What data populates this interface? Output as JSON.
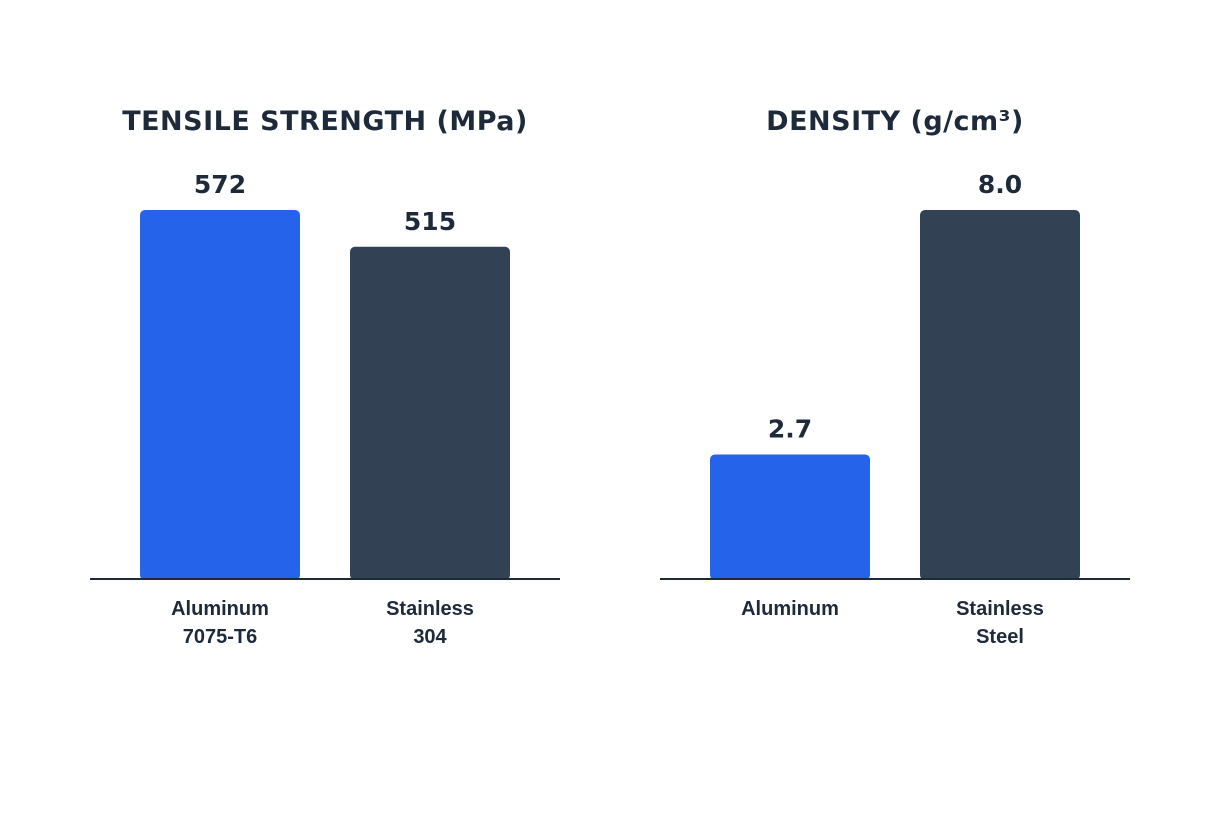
{
  "chart_data": [
    {
      "type": "bar",
      "title": "TENSILE STRENGTH (MPa)",
      "xlabel": "",
      "ylabel": "",
      "grid": false,
      "legend": "none",
      "categories": [
        [
          "Aluminum",
          "7075-T6"
        ],
        [
          "Stainless",
          "304"
        ]
      ],
      "values": [
        572,
        515
      ],
      "value_labels": [
        "572",
        "515"
      ],
      "colors": [
        "#2563eb",
        "#334155"
      ],
      "ylim": [
        0,
        572
      ]
    },
    {
      "type": "bar",
      "title": "DENSITY (g/cm³)",
      "xlabel": "",
      "ylabel": "",
      "grid": false,
      "legend": "none",
      "categories": [
        [
          "Aluminum"
        ],
        [
          "Stainless",
          "Steel"
        ]
      ],
      "values": [
        2.7,
        8.0
      ],
      "value_labels": [
        "2.7",
        "8.0"
      ],
      "colors": [
        "#2563eb",
        "#334155"
      ],
      "ylim": [
        0,
        8.0
      ]
    }
  ]
}
